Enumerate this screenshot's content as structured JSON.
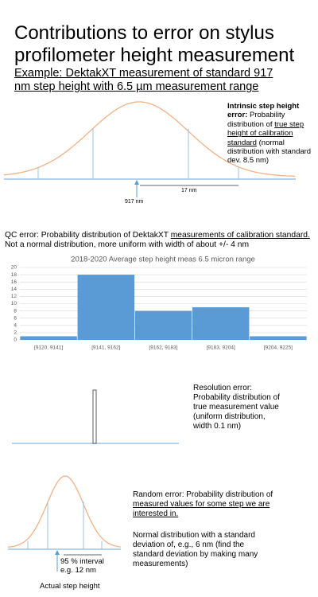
{
  "header": {
    "title": "Contributions to error on stylus profilometer height measurement",
    "subtitle": "Example: DektakXT measurement of standard 917 nm step height with 6.5 µm measurement range"
  },
  "intrinsic": {
    "heading": "Intrinsic step height error:",
    "text_1": "Probability distribution of ",
    "text_underlined": "true step height of calibration standard",
    "text_2": " (normal distribution with standard dev. 8.5 nm)",
    "center_label": "917 nm",
    "width_label": "17 nm"
  },
  "qc": {
    "text_1": "QC error: Probability distribution of DektakXT ",
    "text_underlined": "measurements of calibration standard.",
    "text_2": " Not a normal distribution, more uniform with width of about +/- 4 nm"
  },
  "chart_data": {
    "type": "bar",
    "title": "2018-2020 Average step height meas 6.5 micron range",
    "categories": [
      "[9120, 9141]",
      "[9141, 9162]",
      "[9162, 9183]",
      "[9183, 9204]",
      "[9204, 9225]"
    ],
    "values": [
      1,
      18,
      8,
      9,
      1
    ],
    "color": "#5b9bd5",
    "ylim": [
      0,
      20
    ],
    "yticks": [
      0,
      2,
      4,
      6,
      8,
      10,
      12,
      14,
      16,
      18,
      20
    ],
    "grid": true
  },
  "resolution": {
    "text": "Resolution error: Probability distribution of true measurement value (uniform distribution, width 0.1 nm)"
  },
  "random": {
    "text_1": "Random error: Probability distribution of ",
    "text_underlined": "measured values for some step we are interested in.",
    "text_2": "Normal distribution with a standard deviation of, e.g., 6 nm (find the standard deviation by making many measurements)",
    "interval_label": "95 % interval e.g. 12 nm",
    "center_label": "Actual step height"
  }
}
